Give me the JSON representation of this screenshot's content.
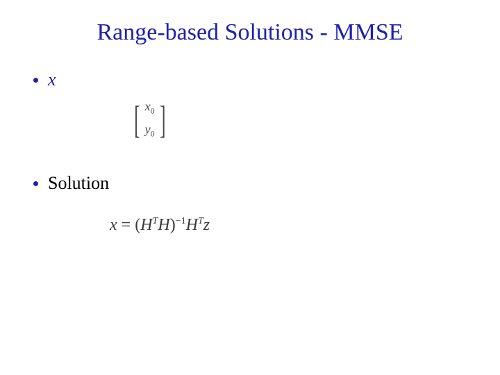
{
  "slide": {
    "title": "Range-based Solutions - MMSE",
    "title_color": "#2020aa",
    "title_fontsize": 34,
    "background_color": "#ffffff"
  },
  "bullet1": {
    "label": "x",
    "bullet_color": "#2020aa",
    "text_color": "#2020aa",
    "italic": true
  },
  "vector": {
    "entries": [
      "x0",
      "y0"
    ],
    "text_color": "#4a4a4a",
    "fontsize": 18
  },
  "bullet2": {
    "label": "Solution",
    "bullet_color": "#2020aa",
    "text_color": "#000000",
    "italic": false
  },
  "equation": {
    "display": "x = (HᵀH)⁻¹Hᵀz",
    "lhs": "x",
    "eq": "=",
    "open": "(",
    "H1": "H",
    "T1": "T",
    "H2": "H",
    "close": ")",
    "inv": "−1",
    "H3": "H",
    "T2": "T",
    "z": "z",
    "text_color": "#3a3a3a",
    "fontsize": 24
  }
}
